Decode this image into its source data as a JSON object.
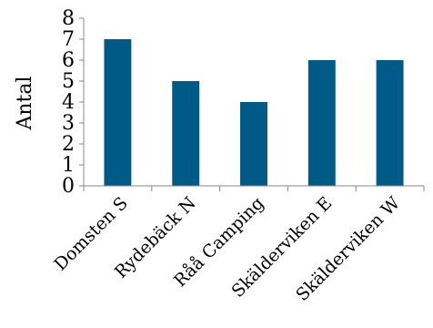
{
  "chart_data": {
    "type": "bar",
    "categories": [
      "Domsten S",
      "Rydebäck N",
      "Råå Camping",
      "Skälderviken E",
      "Skälderviken W"
    ],
    "values": [
      7,
      5,
      4,
      6,
      6
    ],
    "ylabel": "Antal",
    "ylim": [
      0,
      8
    ],
    "yticks": [
      0,
      1,
      2,
      3,
      4,
      5,
      6,
      7,
      8
    ],
    "grid": false,
    "bar_color": "#005a87",
    "axis_color": "#888888"
  }
}
